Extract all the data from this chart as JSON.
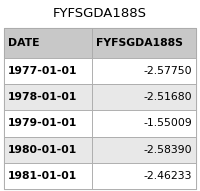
{
  "title": "FYFSGDA188S",
  "columns": [
    "DATE",
    "FYFSGDA188S"
  ],
  "rows": [
    [
      "1977-01-01",
      "-2.57750"
    ],
    [
      "1978-01-01",
      "-2.51680"
    ],
    [
      "1979-01-01",
      "-1.55009"
    ],
    [
      "1980-01-01",
      "-2.58390"
    ],
    [
      "1981-01-01",
      "-2.46233"
    ]
  ],
  "header_bg": "#c8c8c8",
  "row_bg_odd": "#ffffff",
  "row_bg_even": "#e8e8e8",
  "border_color": "#aaaaaa",
  "title_fontsize": 9.5,
  "header_fontsize": 7.8,
  "cell_fontsize": 7.8,
  "fig_bg": "#ffffff",
  "table_bg": "#c8c8c8"
}
